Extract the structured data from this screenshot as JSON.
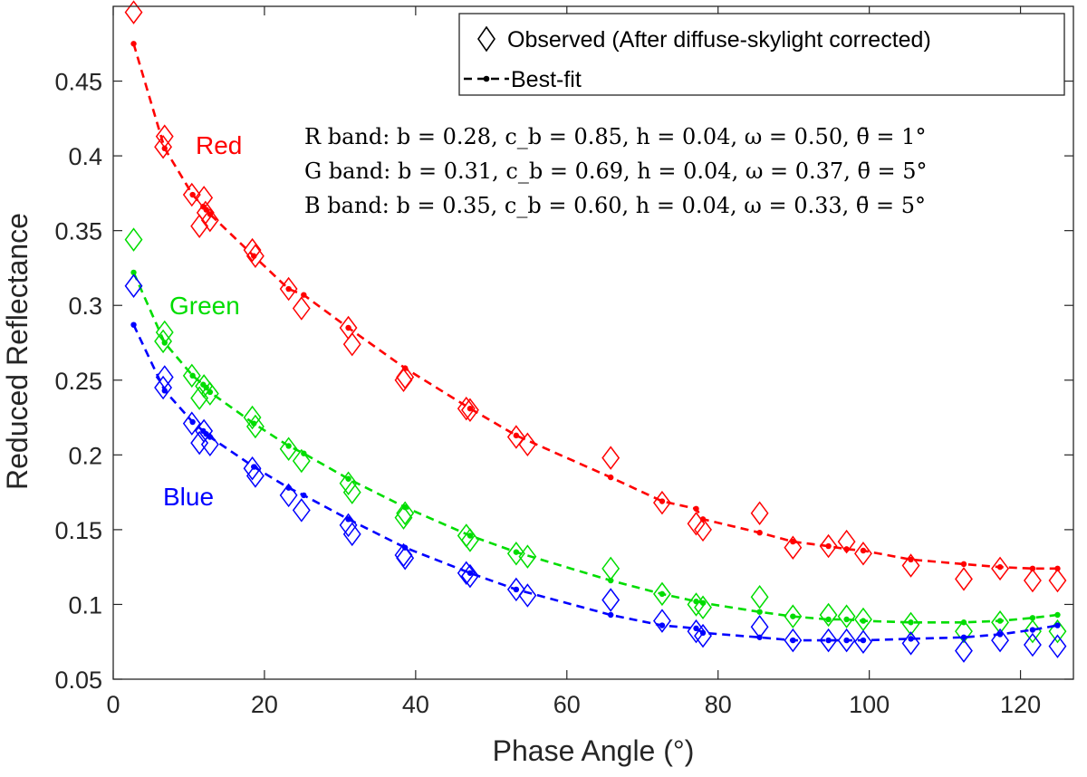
{
  "chart_data": {
    "type": "scatter",
    "xlabel": "Phase Angle (°)",
    "ylabel": "Reduced Reflectance",
    "xlim": [
      0,
      127
    ],
    "ylim": [
      0.05,
      0.5
    ],
    "x_ticks": [
      "0",
      "20",
      "40",
      "60",
      "80",
      "100",
      "120"
    ],
    "y_ticks": [
      "0.05",
      "0.1",
      "0.15",
      "0.2",
      "0.25",
      "0.3",
      "0.35",
      "0.4",
      "0.45"
    ],
    "grid": false,
    "legend": {
      "position": "top-right",
      "entries": [
        {
          "marker": "diamond",
          "label": "Observed (After diffuse-skylight corrected)"
        },
        {
          "marker": "dashed-line-dot",
          "label": "Best-fit"
        }
      ]
    },
    "annotations": {
      "params": [
        "R band: b = 0.28, c_b = 0.85, h = 0.04, ω = 0.50, θ̄ = 1°",
        "G band: b = 0.31, c_b = 0.69, h = 0.04, ω = 0.37, θ̄ = 5°",
        "B band: b = 0.35, c_b = 0.60, h = 0.04, ω = 0.33, θ̄ = 5°"
      ]
    },
    "series": [
      {
        "name": "Red",
        "color": "#ff0000",
        "observed": [
          [
            2.7,
            0.496
          ],
          [
            6.8,
            0.413
          ],
          [
            6.6,
            0.406
          ],
          [
            10.4,
            0.374
          ],
          [
            12.0,
            0.372
          ],
          [
            11.4,
            0.353
          ],
          [
            12.8,
            0.357
          ],
          [
            12.2,
            0.362
          ],
          [
            18.4,
            0.337
          ],
          [
            18.8,
            0.333
          ],
          [
            23.2,
            0.311
          ],
          [
            24.9,
            0.298
          ],
          [
            31.1,
            0.285
          ],
          [
            31.6,
            0.274
          ],
          [
            38.6,
            0.252
          ],
          [
            38.4,
            0.25
          ],
          [
            46.7,
            0.231
          ],
          [
            47.2,
            0.23
          ],
          [
            53.3,
            0.212
          ],
          [
            54.8,
            0.207
          ],
          [
            65.8,
            0.198
          ],
          [
            72.6,
            0.168
          ],
          [
            77.1,
            0.154
          ],
          [
            78.0,
            0.15
          ],
          [
            85.5,
            0.161
          ],
          [
            89.9,
            0.138
          ],
          [
            94.6,
            0.139
          ],
          [
            97.0,
            0.142
          ],
          [
            99.2,
            0.134
          ],
          [
            105.5,
            0.126
          ],
          [
            112.5,
            0.117
          ],
          [
            117.3,
            0.124
          ],
          [
            121.6,
            0.116
          ],
          [
            124.9,
            0.116
          ]
        ],
        "fit": [
          [
            2.7,
            0.475
          ],
          [
            6.8,
            0.405
          ],
          [
            10.5,
            0.374
          ],
          [
            11.9,
            0.366
          ],
          [
            12.3,
            0.364
          ],
          [
            12.8,
            0.361
          ],
          [
            18.6,
            0.333
          ],
          [
            23.2,
            0.311
          ],
          [
            25.2,
            0.307
          ],
          [
            31.1,
            0.285
          ],
          [
            38.6,
            0.258
          ],
          [
            47.2,
            0.231
          ],
          [
            53.3,
            0.213
          ],
          [
            65.8,
            0.185
          ],
          [
            72.6,
            0.169
          ],
          [
            77.1,
            0.164
          ],
          [
            78.0,
            0.157
          ],
          [
            85.5,
            0.148
          ],
          [
            89.9,
            0.142
          ],
          [
            94.6,
            0.139
          ],
          [
            97.0,
            0.137
          ],
          [
            99.2,
            0.136
          ],
          [
            105.5,
            0.13
          ],
          [
            112.5,
            0.127
          ],
          [
            117.3,
            0.125
          ],
          [
            121.6,
            0.124
          ],
          [
            124.9,
            0.124
          ]
        ]
      },
      {
        "name": "Green",
        "color": "#00dd00",
        "observed": [
          [
            2.7,
            0.344
          ],
          [
            6.8,
            0.282
          ],
          [
            6.6,
            0.276
          ],
          [
            10.4,
            0.253
          ],
          [
            12.0,
            0.246
          ],
          [
            11.4,
            0.238
          ],
          [
            12.8,
            0.241
          ],
          [
            18.4,
            0.225
          ],
          [
            18.8,
            0.219
          ],
          [
            23.2,
            0.204
          ],
          [
            24.9,
            0.196
          ],
          [
            31.1,
            0.181
          ],
          [
            31.6,
            0.175
          ],
          [
            38.6,
            0.161
          ],
          [
            38.4,
            0.158
          ],
          [
            46.7,
            0.146
          ],
          [
            47.2,
            0.143
          ],
          [
            53.3,
            0.134
          ],
          [
            54.8,
            0.132
          ],
          [
            65.8,
            0.124
          ],
          [
            72.6,
            0.107
          ],
          [
            77.1,
            0.1
          ],
          [
            78.0,
            0.098
          ],
          [
            85.5,
            0.105
          ],
          [
            89.9,
            0.092
          ],
          [
            94.6,
            0.093
          ],
          [
            97.0,
            0.092
          ],
          [
            99.2,
            0.09
          ],
          [
            105.5,
            0.087
          ],
          [
            112.5,
            0.082
          ],
          [
            117.3,
            0.088
          ],
          [
            121.6,
            0.082
          ],
          [
            124.9,
            0.082
          ]
        ],
        "fit": [
          [
            2.7,
            0.322
          ],
          [
            6.8,
            0.275
          ],
          [
            10.5,
            0.253
          ],
          [
            11.9,
            0.247
          ],
          [
            12.3,
            0.245
          ],
          [
            12.8,
            0.242
          ],
          [
            18.6,
            0.221
          ],
          [
            23.2,
            0.206
          ],
          [
            25.2,
            0.201
          ],
          [
            31.1,
            0.184
          ],
          [
            38.6,
            0.165
          ],
          [
            47.2,
            0.146
          ],
          [
            53.3,
            0.135
          ],
          [
            65.8,
            0.116
          ],
          [
            72.6,
            0.107
          ],
          [
            77.1,
            0.102
          ],
          [
            78.0,
            0.101
          ],
          [
            85.5,
            0.095
          ],
          [
            89.9,
            0.092
          ],
          [
            94.6,
            0.09
          ],
          [
            97.0,
            0.09
          ],
          [
            99.2,
            0.089
          ],
          [
            105.5,
            0.088
          ],
          [
            112.5,
            0.088
          ],
          [
            117.3,
            0.089
          ],
          [
            121.6,
            0.091
          ],
          [
            124.9,
            0.093
          ]
        ]
      },
      {
        "name": "Blue",
        "color": "#0000ff",
        "observed": [
          [
            2.7,
            0.313
          ],
          [
            6.8,
            0.252
          ],
          [
            6.6,
            0.245
          ],
          [
            10.4,
            0.221
          ],
          [
            12.0,
            0.216
          ],
          [
            11.4,
            0.208
          ],
          [
            12.8,
            0.207
          ],
          [
            18.4,
            0.191
          ],
          [
            18.8,
            0.186
          ],
          [
            23.2,
            0.173
          ],
          [
            24.9,
            0.163
          ],
          [
            31.1,
            0.153
          ],
          [
            31.6,
            0.147
          ],
          [
            38.6,
            0.131
          ],
          [
            38.4,
            0.133
          ],
          [
            46.7,
            0.121
          ],
          [
            47.2,
            0.119
          ],
          [
            53.3,
            0.11
          ],
          [
            54.8,
            0.106
          ],
          [
            65.8,
            0.103
          ],
          [
            72.6,
            0.089
          ],
          [
            77.1,
            0.082
          ],
          [
            78.0,
            0.079
          ],
          [
            85.5,
            0.085
          ],
          [
            89.9,
            0.076
          ],
          [
            94.6,
            0.076
          ],
          [
            97.0,
            0.076
          ],
          [
            99.2,
            0.075
          ],
          [
            105.5,
            0.074
          ],
          [
            112.5,
            0.069
          ],
          [
            117.3,
            0.076
          ],
          [
            121.6,
            0.073
          ],
          [
            124.9,
            0.072
          ]
        ],
        "fit": [
          [
            2.7,
            0.287
          ],
          [
            6.8,
            0.243
          ],
          [
            10.5,
            0.222
          ],
          [
            11.9,
            0.216
          ],
          [
            12.3,
            0.214
          ],
          [
            12.8,
            0.212
          ],
          [
            18.6,
            0.192
          ],
          [
            23.2,
            0.178
          ],
          [
            25.2,
            0.173
          ],
          [
            31.1,
            0.157
          ],
          [
            38.6,
            0.138
          ],
          [
            47.2,
            0.121
          ],
          [
            53.3,
            0.11
          ],
          [
            65.8,
            0.093
          ],
          [
            72.6,
            0.086
          ],
          [
            77.1,
            0.084
          ],
          [
            78.0,
            0.081
          ],
          [
            85.5,
            0.078
          ],
          [
            89.9,
            0.076
          ],
          [
            94.6,
            0.076
          ],
          [
            97.0,
            0.076
          ],
          [
            99.2,
            0.076
          ],
          [
            105.5,
            0.077
          ],
          [
            112.5,
            0.078
          ],
          [
            117.3,
            0.08
          ],
          [
            121.6,
            0.083
          ],
          [
            124.9,
            0.086
          ]
        ]
      }
    ]
  }
}
